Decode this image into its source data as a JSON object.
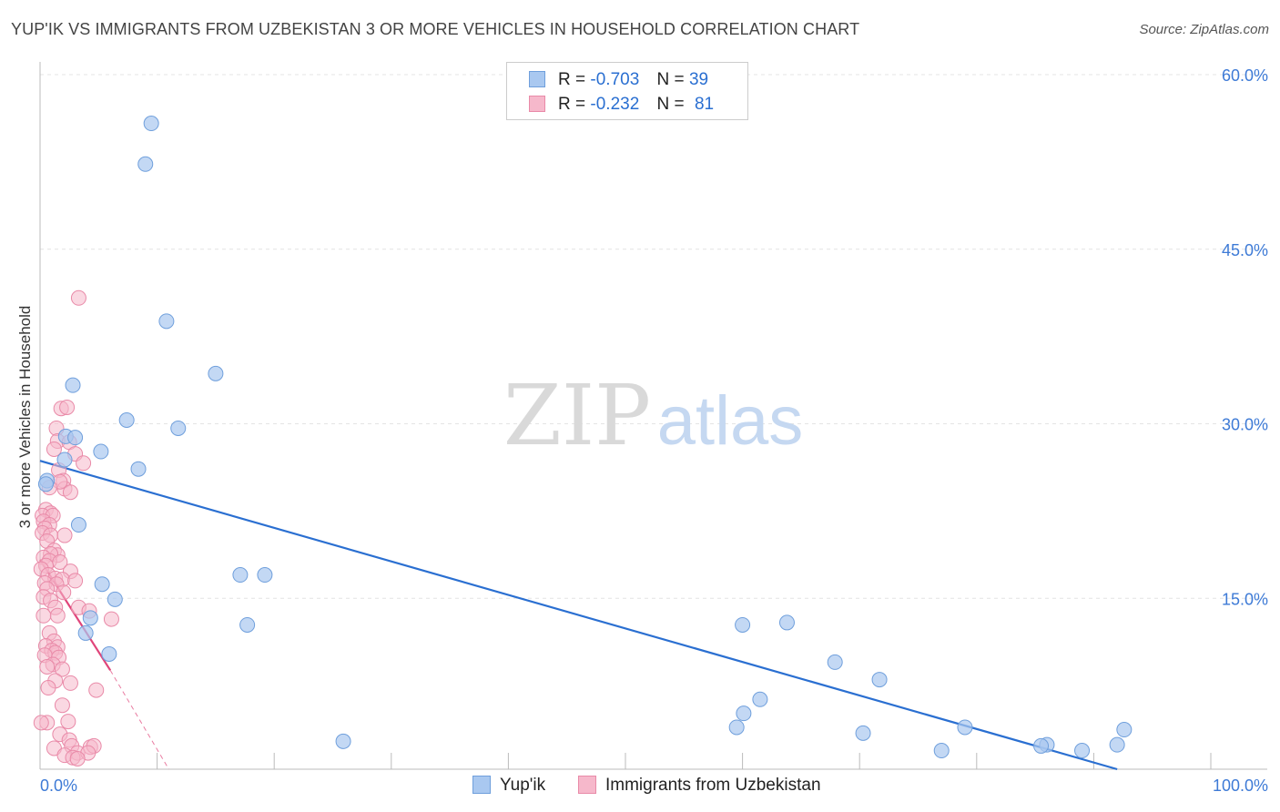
{
  "header": {
    "title": "YUP'IK VS IMMIGRANTS FROM UZBEKISTAN 3 OR MORE VEHICLES IN HOUSEHOLD CORRELATION CHART",
    "source": "Source: ZipAtlas.com"
  },
  "watermark": {
    "zip": "ZIP",
    "atlas": "atlas"
  },
  "legend": {
    "rows": [
      {
        "r_label": "R =",
        "r_value": "-0.703",
        "n_label": "N =",
        "n_value": "39"
      },
      {
        "r_label": "R =",
        "r_value": "-0.232",
        "n_label": "N =",
        "n_value": "81"
      }
    ]
  },
  "colors": {
    "blue_fill": "#a9c8f0",
    "blue_edge": "#6f9fdc",
    "blue_line": "#2a6fd1",
    "pink_fill": "#f6b8cb",
    "pink_edge": "#e98aa8",
    "pink_line": "#e0457a",
    "grid": "#e4e4e4",
    "tick_label": "#3d7ad6"
  },
  "chart_data": {
    "type": "scatter",
    "title": "YUP'IK VS IMMIGRANTS FROM UZBEKISTAN 3 OR MORE VEHICLES IN HOUSEHOLD CORRELATION CHART",
    "xlabel": "",
    "ylabel": "3 or more Vehicles in Household",
    "xlim": [
      0,
      100
    ],
    "ylim": [
      0,
      60
    ],
    "x_tick_labels": [
      "0.0%",
      "100.0%"
    ],
    "y_ticks": [
      15,
      30,
      45,
      60
    ],
    "y_tick_labels": [
      "15.0%",
      "30.0%",
      "45.0%",
      "60.0%"
    ],
    "grid": true,
    "series": [
      {
        "name": "Yup'ik",
        "color": "#a9c8f0",
        "r": -0.703,
        "n": 39,
        "trend": {
          "x": [
            0,
            92
          ],
          "y": [
            26.5,
            0
          ]
        },
        "points": [
          [
            9.5,
            55.5
          ],
          [
            9.0,
            52.0
          ],
          [
            10.8,
            38.5
          ],
          [
            15.0,
            34.0
          ],
          [
            2.8,
            33.0
          ],
          [
            7.4,
            30.0
          ],
          [
            11.8,
            29.3
          ],
          [
            2.2,
            28.6
          ],
          [
            5.2,
            27.3
          ],
          [
            2.1,
            26.6
          ],
          [
            8.4,
            25.8
          ],
          [
            0.6,
            24.8
          ],
          [
            3.3,
            21.0
          ],
          [
            17.1,
            16.7
          ],
          [
            19.2,
            16.7
          ],
          [
            5.3,
            15.9
          ],
          [
            6.4,
            14.6
          ],
          [
            4.3,
            13.0
          ],
          [
            3.9,
            11.7
          ],
          [
            17.7,
            12.4
          ],
          [
            5.9,
            9.9
          ],
          [
            60.0,
            12.4
          ],
          [
            63.8,
            12.6
          ],
          [
            67.9,
            9.2
          ],
          [
            71.7,
            7.7
          ],
          [
            61.5,
            6.0
          ],
          [
            60.1,
            4.8
          ],
          [
            59.5,
            3.6
          ],
          [
            25.9,
            2.4
          ],
          [
            70.3,
            3.1
          ],
          [
            79.0,
            3.6
          ],
          [
            77.0,
            1.6
          ],
          [
            86.0,
            2.1
          ],
          [
            85.5,
            2.0
          ],
          [
            89.0,
            1.6
          ],
          [
            92.6,
            3.4
          ],
          [
            92.0,
            2.1
          ],
          [
            0.5,
            24.5
          ],
          [
            3.0,
            28.5
          ]
        ]
      },
      {
        "name": "Immigrants from Uzbekistan",
        "color": "#f6b8cb",
        "r": -0.232,
        "n": 81,
        "trend": {
          "x": [
            0,
            6
          ],
          "y": [
            18.0,
            8.5
          ]
        },
        "trend_dashed": {
          "x": [
            6,
            11
          ],
          "y": [
            8.5,
            0
          ]
        },
        "points": [
          [
            3.3,
            40.5
          ],
          [
            1.8,
            31.0
          ],
          [
            2.3,
            31.1
          ],
          [
            1.4,
            29.3
          ],
          [
            1.5,
            28.2
          ],
          [
            2.5,
            28.1
          ],
          [
            1.2,
            27.5
          ],
          [
            3.0,
            27.1
          ],
          [
            3.7,
            26.3
          ],
          [
            1.6,
            25.7
          ],
          [
            2.0,
            24.8
          ],
          [
            2.1,
            24.1
          ],
          [
            1.7,
            24.7
          ],
          [
            2.6,
            23.8
          ],
          [
            0.8,
            24.2
          ],
          [
            0.5,
            22.3
          ],
          [
            0.9,
            22.0
          ],
          [
            0.2,
            21.8
          ],
          [
            1.1,
            21.8
          ],
          [
            0.3,
            21.3
          ],
          [
            0.8,
            21.0
          ],
          [
            0.4,
            20.7
          ],
          [
            0.2,
            20.3
          ],
          [
            0.9,
            20.1
          ],
          [
            2.1,
            20.1
          ],
          [
            0.6,
            19.6
          ],
          [
            1.2,
            18.8
          ],
          [
            1.5,
            18.4
          ],
          [
            0.9,
            18.5
          ],
          [
            0.3,
            18.2
          ],
          [
            0.8,
            17.9
          ],
          [
            1.7,
            17.8
          ],
          [
            0.5,
            17.5
          ],
          [
            0.1,
            17.2
          ],
          [
            2.6,
            17.0
          ],
          [
            0.7,
            16.7
          ],
          [
            1.3,
            16.4
          ],
          [
            1.9,
            16.3
          ],
          [
            3.0,
            16.2
          ],
          [
            0.4,
            16.0
          ],
          [
            1.4,
            15.9
          ],
          [
            0.6,
            15.5
          ],
          [
            2.0,
            15.2
          ],
          [
            0.3,
            14.8
          ],
          [
            0.9,
            14.5
          ],
          [
            1.3,
            13.9
          ],
          [
            3.3,
            13.9
          ],
          [
            4.2,
            13.6
          ],
          [
            1.5,
            13.2
          ],
          [
            0.3,
            13.2
          ],
          [
            6.1,
            12.9
          ],
          [
            0.8,
            11.7
          ],
          [
            1.2,
            11.0
          ],
          [
            0.5,
            10.6
          ],
          [
            1.5,
            10.5
          ],
          [
            1.0,
            10.2
          ],
          [
            1.3,
            10.0
          ],
          [
            0.4,
            9.8
          ],
          [
            1.6,
            9.6
          ],
          [
            1.1,
            9.0
          ],
          [
            0.6,
            8.8
          ],
          [
            1.9,
            8.6
          ],
          [
            1.3,
            7.6
          ],
          [
            2.6,
            7.4
          ],
          [
            0.7,
            7.0
          ],
          [
            4.8,
            6.8
          ],
          [
            1.9,
            5.5
          ],
          [
            0.6,
            4.0
          ],
          [
            2.4,
            4.1
          ],
          [
            0.1,
            4.0
          ],
          [
            1.7,
            3.0
          ],
          [
            2.5,
            2.5
          ],
          [
            1.2,
            1.8
          ],
          [
            4.3,
            1.9
          ],
          [
            4.6,
            2.0
          ],
          [
            2.7,
            2.0
          ],
          [
            3.2,
            1.4
          ],
          [
            4.1,
            1.4
          ],
          [
            2.1,
            1.2
          ],
          [
            2.8,
            1.0
          ],
          [
            3.2,
            0.9
          ]
        ]
      }
    ]
  },
  "bottom_legend": {
    "items": [
      "Yup'ik",
      "Immigrants from Uzbekistan"
    ]
  }
}
